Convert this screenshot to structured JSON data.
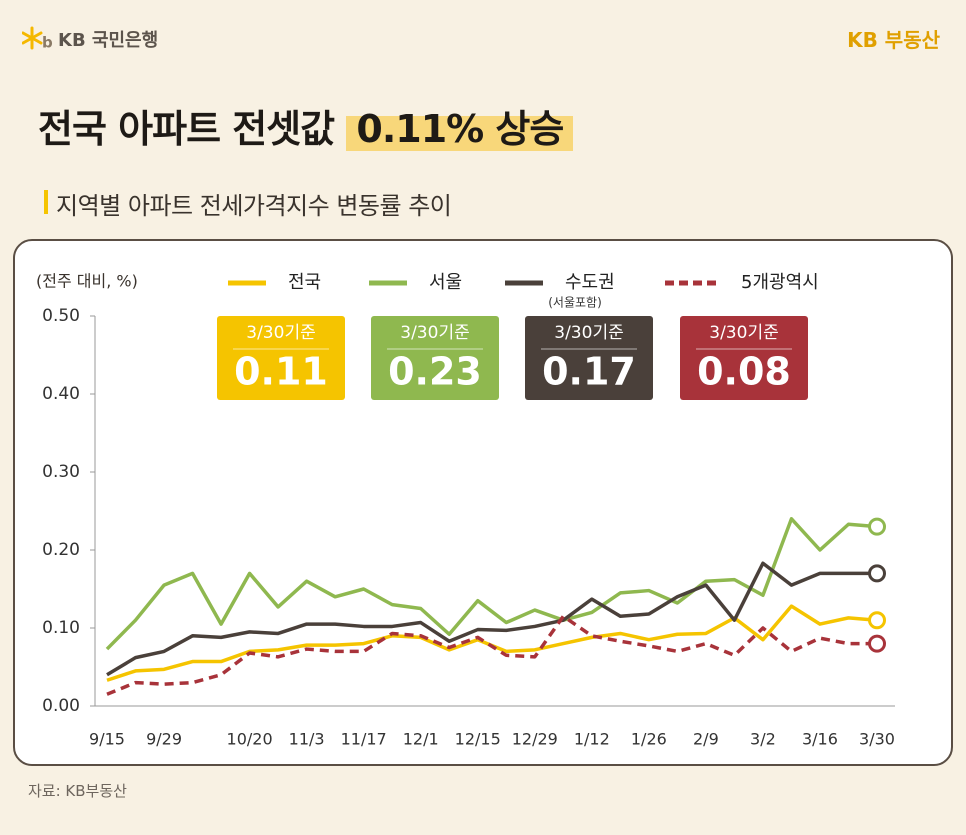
{
  "header": {
    "bank": "KB 국민은행",
    "brand": "KB 부동산"
  },
  "title": "전국 아파트 전셋값",
  "title_highlight": "0.11% 상승",
  "subtitle": "지역별 아파트 전세가격지수 변동률 추이",
  "source": "자료: KB부동산",
  "chart_data": {
    "type": "line",
    "y_label": "(전주 대비, %)",
    "categories": [
      "9/15",
      null,
      "9/29",
      null,
      null,
      "10/20",
      null,
      "11/3",
      null,
      "11/17",
      null,
      "12/1",
      null,
      "12/15",
      null,
      "12/29",
      null,
      "1/12",
      null,
      "1/26",
      null,
      "2/9",
      null,
      "3/2",
      null,
      "3/16",
      null,
      "3/30"
    ],
    "ylim": [
      0,
      0.5
    ],
    "yticks": [
      {
        "value": 0,
        "label": "0.00"
      },
      {
        "value": 0.1,
        "label": "0.10"
      },
      {
        "value": 0.2,
        "label": "0.20"
      },
      {
        "value": 0.3,
        "label": "0.30"
      },
      {
        "value": 0.4,
        "label": "0.40"
      },
      {
        "value": 0.5,
        "label": "0.50"
      }
    ],
    "series": [
      {
        "name": "전국",
        "color": "#f5c400",
        "dashed": false,
        "badge_label": "3/30기준",
        "badge_value": "0.11",
        "values": [
          0.033,
          0.045,
          0.047,
          0.057,
          0.057,
          0.07,
          0.072,
          0.078,
          0.078,
          0.08,
          0.09,
          0.088,
          0.072,
          0.085,
          0.07,
          0.072,
          0.08,
          0.088,
          0.093,
          0.085,
          0.092,
          0.093,
          0.113,
          0.085,
          0.128,
          0.105,
          0.113,
          0.11
        ]
      },
      {
        "name": "서울",
        "color": "#8fb84f",
        "dashed": false,
        "badge_label": "3/30기준",
        "badge_value": "0.23",
        "values": [
          0.073,
          0.11,
          0.155,
          0.17,
          0.105,
          0.17,
          0.127,
          0.16,
          0.14,
          0.15,
          0.13,
          0.125,
          0.092,
          0.135,
          0.107,
          0.123,
          0.11,
          0.12,
          0.145,
          0.148,
          0.132,
          0.16,
          0.162,
          0.142,
          0.24,
          0.2,
          0.233,
          0.23
        ]
      },
      {
        "name": "수도권",
        "note": "(서울포함)",
        "color": "#4a403a",
        "dashed": false,
        "badge_label": "3/30기준",
        "badge_value": "0.17",
        "values": [
          0.04,
          0.062,
          0.07,
          0.09,
          0.088,
          0.095,
          0.093,
          0.105,
          0.105,
          0.102,
          0.102,
          0.107,
          0.083,
          0.098,
          0.097,
          0.102,
          0.11,
          0.137,
          0.115,
          0.118,
          0.14,
          0.155,
          0.11,
          0.183,
          0.155,
          0.17,
          0.17,
          0.17
        ]
      },
      {
        "name": "5개광역시",
        "color": "#a8333a",
        "dashed": true,
        "badge_label": "3/30기준",
        "badge_value": "0.08",
        "values": [
          0.015,
          0.03,
          0.028,
          0.03,
          0.04,
          0.068,
          0.063,
          0.073,
          0.07,
          0.07,
          0.093,
          0.09,
          0.075,
          0.088,
          0.065,
          0.063,
          0.115,
          0.09,
          0.083,
          0.077,
          0.07,
          0.08,
          0.065,
          0.1,
          0.07,
          0.087,
          0.08,
          0.08
        ]
      }
    ]
  }
}
